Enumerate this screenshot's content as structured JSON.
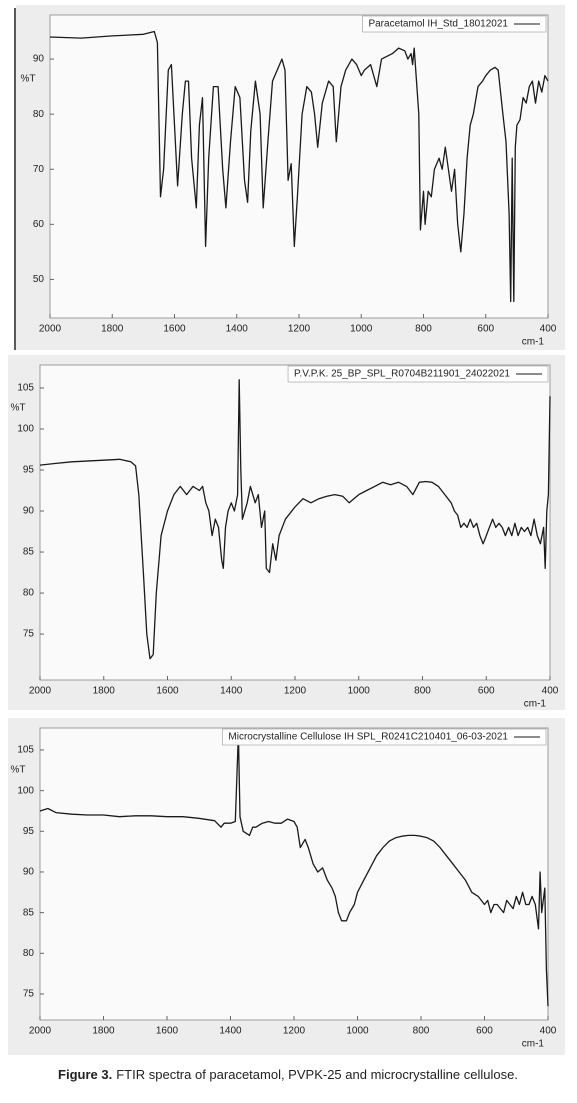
{
  "chart_data": [
    {
      "type": "line",
      "x_label": "cm-1",
      "y_label": "%T",
      "legend": "upper right",
      "xlim": [
        2000,
        400
      ],
      "xticks": [
        2000,
        1800,
        1600,
        1400,
        1200,
        1000,
        800,
        600,
        400
      ],
      "ylim": [
        43,
        98
      ],
      "yticks": [
        50,
        60,
        70,
        80,
        90
      ],
      "grid": false,
      "x": [
        2000,
        1900,
        1800,
        1700,
        1665,
        1655,
        1645,
        1635,
        1620,
        1610,
        1600,
        1590,
        1575,
        1565,
        1555,
        1545,
        1530,
        1520,
        1510,
        1500,
        1490,
        1475,
        1460,
        1445,
        1435,
        1420,
        1405,
        1390,
        1375,
        1365,
        1355,
        1340,
        1325,
        1315,
        1300,
        1285,
        1270,
        1255,
        1245,
        1235,
        1225,
        1215,
        1205,
        1190,
        1175,
        1160,
        1150,
        1140,
        1125,
        1105,
        1090,
        1080,
        1065,
        1050,
        1030,
        1015,
        1000,
        990,
        970,
        950,
        935,
        900,
        880,
        860,
        850,
        840,
        835,
        830,
        815,
        810,
        800,
        795,
        785,
        775,
        765,
        750,
        740,
        730,
        720,
        710,
        700,
        690,
        680,
        670,
        660,
        650,
        640,
        625,
        610,
        600,
        585,
        570,
        560,
        545,
        535,
        525,
        520,
        515,
        510,
        505,
        500,
        490,
        480,
        470,
        460,
        450,
        440,
        430,
        420,
        410,
        400
      ],
      "series": [
        {
          "name": "Paracetamol IH_Std_18012021",
          "color": "#1a1a1a",
          "values": [
            94,
            93.8,
            94.2,
            94.5,
            95,
            93,
            65,
            70,
            88,
            89,
            78,
            67,
            80,
            86,
            86,
            72,
            63,
            78,
            83,
            56,
            72,
            85,
            85,
            70,
            63,
            75,
            85,
            83,
            68,
            64,
            77,
            86,
            80,
            63,
            75,
            86,
            88,
            90,
            88,
            68,
            71,
            56,
            65,
            80,
            85,
            84,
            80,
            74,
            82,
            86,
            85,
            75,
            85,
            88,
            90,
            89,
            87,
            88,
            89,
            85,
            90,
            91,
            92,
            91.5,
            90,
            91,
            89,
            92,
            80,
            59,
            66,
            60,
            66,
            65,
            70,
            72,
            70,
            74,
            70,
            66,
            70,
            60,
            55,
            62,
            72,
            78,
            80,
            85,
            86,
            87,
            88,
            88.5,
            88,
            80,
            75,
            62,
            46,
            72,
            46,
            74,
            78,
            79,
            83,
            82,
            85,
            86,
            82,
            86,
            84,
            87,
            86
          ]
        }
      ]
    },
    {
      "type": "line",
      "x_label": "cm-1",
      "y_label": "%T",
      "legend": "upper right",
      "xlim": [
        2000,
        400
      ],
      "xticks": [
        2000,
        1800,
        1600,
        1400,
        1200,
        1000,
        800,
        600,
        400
      ],
      "ylim": [
        69.4,
        107.8
      ],
      "yticks": [
        75,
        80,
        85,
        90,
        95,
        100,
        105
      ],
      "grid": false,
      "x": [
        2000,
        1950,
        1900,
        1800,
        1750,
        1715,
        1700,
        1690,
        1675,
        1665,
        1655,
        1645,
        1635,
        1620,
        1600,
        1580,
        1560,
        1540,
        1520,
        1500,
        1490,
        1480,
        1470,
        1460,
        1450,
        1440,
        1430,
        1425,
        1418,
        1410,
        1400,
        1390,
        1380,
        1375,
        1370,
        1365,
        1350,
        1340,
        1325,
        1315,
        1305,
        1295,
        1290,
        1280,
        1270,
        1260,
        1250,
        1230,
        1200,
        1175,
        1150,
        1125,
        1100,
        1075,
        1050,
        1030,
        1000,
        975,
        950,
        925,
        900,
        875,
        850,
        830,
        810,
        790,
        770,
        750,
        730,
        710,
        700,
        690,
        680,
        670,
        660,
        650,
        640,
        630,
        620,
        610,
        600,
        590,
        580,
        570,
        560,
        550,
        540,
        530,
        520,
        510,
        500,
        490,
        480,
        470,
        460,
        450,
        440,
        430,
        420,
        415,
        410,
        405,
        400
      ],
      "series": [
        {
          "name": "P.V.P.K. 25_BP_SPL_R0704B211901_24022021",
          "color": "#1a1a1a",
          "values": [
            95.6,
            95.8,
            96,
            96.2,
            96.3,
            96,
            95.5,
            92,
            82,
            75,
            72,
            72.5,
            80,
            87,
            90,
            92,
            93,
            92,
            93,
            92.5,
            93,
            91,
            90,
            87,
            89,
            88,
            84,
            83,
            88,
            90,
            91,
            90,
            92,
            106,
            95,
            89,
            91,
            93,
            91,
            92,
            88,
            90,
            83,
            82.5,
            86,
            84,
            87,
            89,
            90.5,
            91.5,
            91,
            91.5,
            91.8,
            92,
            91.8,
            91,
            92,
            92.5,
            93,
            93.5,
            93.2,
            93.5,
            93,
            92,
            93.5,
            93.6,
            93.5,
            93,
            92,
            91,
            90,
            89.5,
            88,
            88.5,
            88,
            89,
            88,
            88.5,
            87,
            86,
            87,
            88,
            89,
            88,
            88.5,
            88,
            87,
            88,
            87,
            88.5,
            87,
            88,
            87.5,
            88,
            87,
            89,
            87,
            86,
            88,
            83,
            90,
            92,
            104
          ]
        }
      ]
    },
    {
      "type": "line",
      "x_label": "cm-1",
      "y_label": "%T",
      "legend": "upper right",
      "xlim": [
        2000,
        400
      ],
      "xticks": [
        2000,
        1800,
        1600,
        1400,
        1200,
        1000,
        800,
        600,
        400
      ],
      "ylim": [
        71.8,
        107.7
      ],
      "yticks": [
        75,
        80,
        85,
        90,
        95,
        100,
        105
      ],
      "grid": false,
      "x": [
        2000,
        1975,
        1950,
        1900,
        1850,
        1800,
        1750,
        1700,
        1650,
        1600,
        1550,
        1500,
        1450,
        1430,
        1420,
        1400,
        1385,
        1375,
        1370,
        1360,
        1340,
        1330,
        1320,
        1300,
        1280,
        1260,
        1240,
        1220,
        1200,
        1190,
        1180,
        1165,
        1155,
        1140,
        1125,
        1110,
        1095,
        1080,
        1070,
        1060,
        1050,
        1035,
        1025,
        1010,
        1000,
        980,
        960,
        940,
        920,
        900,
        880,
        860,
        840,
        820,
        800,
        780,
        760,
        740,
        720,
        700,
        680,
        660,
        640,
        620,
        600,
        590,
        580,
        570,
        560,
        550,
        540,
        530,
        520,
        510,
        500,
        490,
        480,
        470,
        460,
        450,
        440,
        430,
        425,
        420,
        410,
        405,
        400
      ],
      "series": [
        {
          "name": "Microcrystalline Cellulose IH SPL_R0241C210401_06-03-2021",
          "color": "#1a1a1a",
          "values": [
            97.5,
            97.8,
            97.3,
            97.1,
            97,
            97,
            96.8,
            96.9,
            96.9,
            96.8,
            96.8,
            96.6,
            96.3,
            95.5,
            96,
            96,
            96.2,
            107,
            96.8,
            95,
            94.5,
            95.5,
            95.5,
            96,
            96.2,
            96,
            96,
            96.5,
            96.2,
            95.5,
            93,
            94,
            93,
            91,
            90,
            90.5,
            89,
            88,
            87,
            85,
            84,
            84,
            85,
            86,
            87.5,
            89,
            90.5,
            92,
            93,
            93.8,
            94.2,
            94.4,
            94.5,
            94.5,
            94.4,
            94.2,
            93.8,
            93,
            92,
            91,
            90,
            89,
            87.5,
            87,
            86,
            86.5,
            85,
            86,
            86,
            85.5,
            85,
            86.5,
            86,
            85.5,
            87,
            86,
            87.5,
            86,
            86,
            87,
            86,
            83,
            90,
            85,
            88,
            78,
            73.5
          ]
        }
      ]
    }
  ],
  "caption": {
    "label": "Figure 3.",
    "text": "FTIR spectra of paracetamol, PVPK-25 and microcrystalline cellulose."
  }
}
